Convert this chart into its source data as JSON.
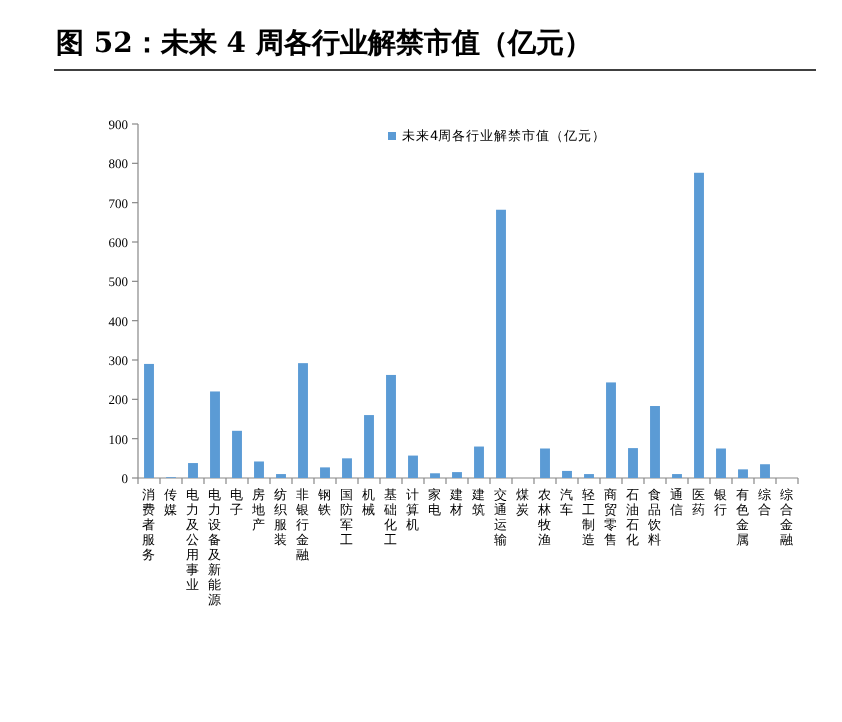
{
  "chart_data": {
    "type": "bar",
    "title": "图 52：未来 4 周各行业解禁市值（亿元）",
    "categories": [
      "消费者服务",
      "传媒",
      "电力及公用事业",
      "电力设备及新能源",
      "电子",
      "房地产",
      "纺织服装",
      "非银行金融",
      "钢铁",
      "国防军工",
      "机械",
      "基础化工",
      "计算机",
      "家电",
      "建材",
      "建筑",
      "交通运输",
      "煤炭",
      "农林牧渔",
      "汽车",
      "轻工制造",
      "商贸零售",
      "石油石化",
      "食品饮料",
      "通信",
      "医药",
      "银行",
      "有色金属",
      "综合",
      "综合金融"
    ],
    "series": [
      {
        "name": "未来4周各行业解禁市值（亿元）",
        "color": "#5b9bd5",
        "values": [
          290,
          2,
          38,
          220,
          120,
          42,
          10,
          292,
          27,
          50,
          160,
          262,
          57,
          12,
          15,
          80,
          682,
          0,
          75,
          18,
          10,
          243,
          76,
          183,
          10,
          776,
          75,
          22,
          35,
          0
        ]
      }
    ],
    "ylim": [
      0,
      900
    ],
    "yticks": [
      0,
      100,
      200,
      300,
      400,
      500,
      600,
      700,
      800,
      900
    ],
    "grid": false,
    "legend": "top"
  }
}
